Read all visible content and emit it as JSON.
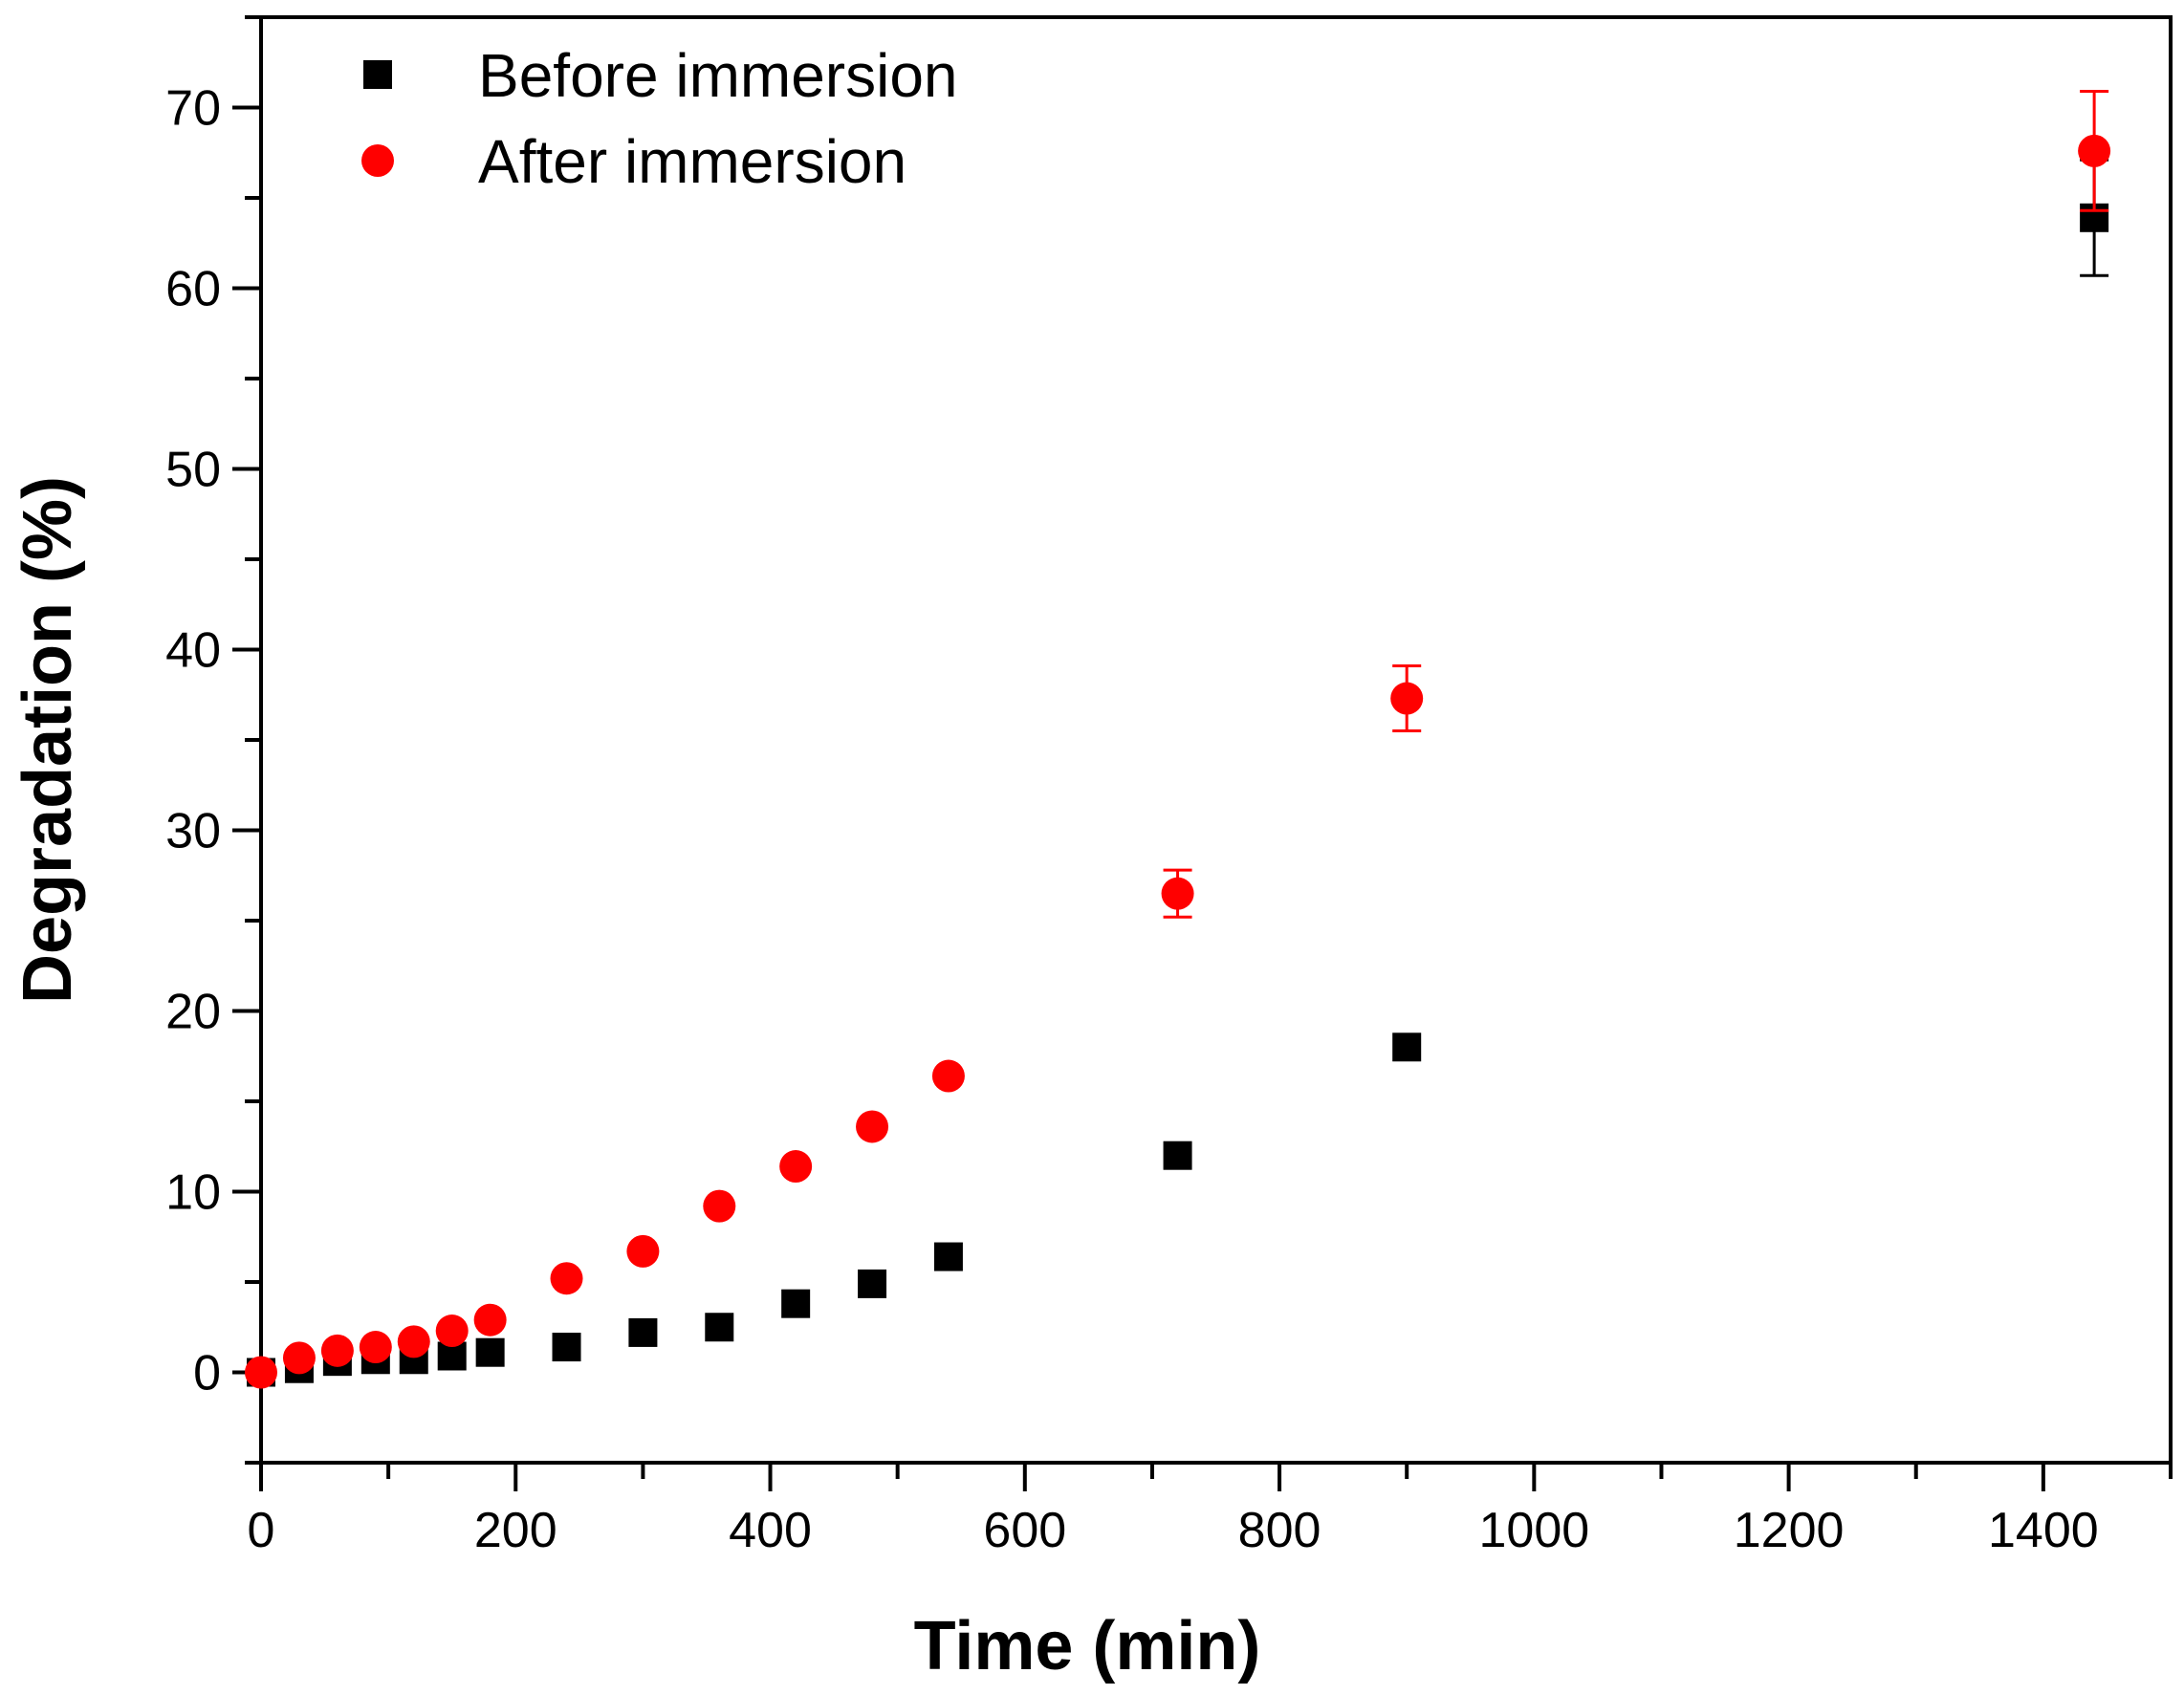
{
  "chart_data": {
    "type": "scatter",
    "title": "",
    "xlabel": "Time (min)",
    "ylabel": "Degradation (%)",
    "xlim": [
      0,
      1500
    ],
    "ylim": [
      -5,
      75
    ],
    "x_ticks": [
      0,
      200,
      400,
      600,
      800,
      1000,
      1200,
      1400
    ],
    "x_tick_labels": [
      "0",
      "200",
      "400",
      "600",
      "800",
      "1000",
      "1200",
      "1400"
    ],
    "y_ticks": [
      0,
      10,
      20,
      30,
      40,
      50,
      60,
      70
    ],
    "y_tick_labels": [
      "0",
      "10",
      "20",
      "30",
      "40",
      "50",
      "60",
      "70"
    ],
    "grid": false,
    "legend_position": "top-left",
    "series": [
      {
        "name": "Before immersion",
        "marker": "square",
        "color": "#000000",
        "x": [
          0,
          30,
          60,
          90,
          120,
          150,
          180,
          240,
          300,
          360,
          420,
          480,
          540,
          720,
          900,
          1440
        ],
        "y": [
          0,
          0.2,
          0.6,
          0.7,
          0.7,
          0.9,
          1.1,
          1.4,
          2.2,
          2.5,
          3.8,
          4.9,
          6.4,
          12.0,
          18.0,
          63.9
        ],
        "err": [
          0,
          0,
          0,
          0,
          0,
          0,
          0,
          0,
          0,
          0,
          0,
          0,
          0,
          0,
          0,
          3.2
        ]
      },
      {
        "name": "After immersion",
        "marker": "circle",
        "color": "#ff0000",
        "x": [
          0,
          30,
          60,
          90,
          120,
          150,
          180,
          240,
          300,
          360,
          420,
          480,
          540,
          720,
          900,
          1440
        ],
        "y": [
          0,
          0.8,
          1.2,
          1.4,
          1.7,
          2.3,
          2.9,
          5.2,
          6.7,
          9.2,
          11.4,
          13.6,
          16.4,
          26.5,
          37.3,
          67.6
        ],
        "err": [
          0,
          0,
          0,
          0,
          0,
          0,
          0,
          0,
          0,
          0,
          0,
          0,
          0,
          1.3,
          1.8,
          3.3
        ]
      }
    ]
  }
}
